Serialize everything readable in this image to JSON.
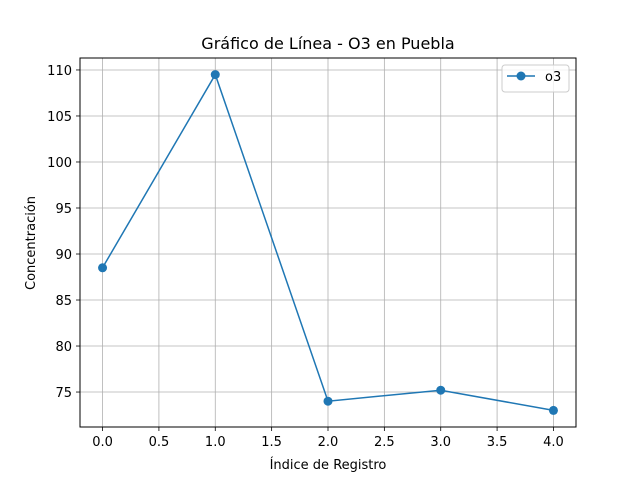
{
  "chart_data": {
    "type": "line",
    "title": "Gráfico de Línea - O3 en Puebla",
    "xlabel": "Índice de Registro",
    "ylabel": "Concentración",
    "x": [
      0,
      1,
      2,
      3,
      4
    ],
    "series": [
      {
        "name": "o3",
        "values": [
          88.5,
          109.5,
          74.0,
          75.2,
          73.0
        ],
        "color": "#1f77b4",
        "marker": "circle"
      }
    ],
    "xlim": [
      -0.2,
      4.2
    ],
    "ylim": [
      71.2,
      111.3
    ],
    "xticks": [
      0.0,
      0.5,
      1.0,
      1.5,
      2.0,
      2.5,
      3.0,
      3.5,
      4.0
    ],
    "xtick_labels": [
      "0.0",
      "0.5",
      "1.0",
      "1.5",
      "2.0",
      "2.5",
      "3.0",
      "3.5",
      "4.0"
    ],
    "yticks": [
      75,
      80,
      85,
      90,
      95,
      100,
      105,
      110
    ],
    "ytick_labels": [
      "75",
      "80",
      "85",
      "90",
      "95",
      "100",
      "105",
      "110"
    ],
    "grid": true,
    "legend_position": "top-right"
  }
}
